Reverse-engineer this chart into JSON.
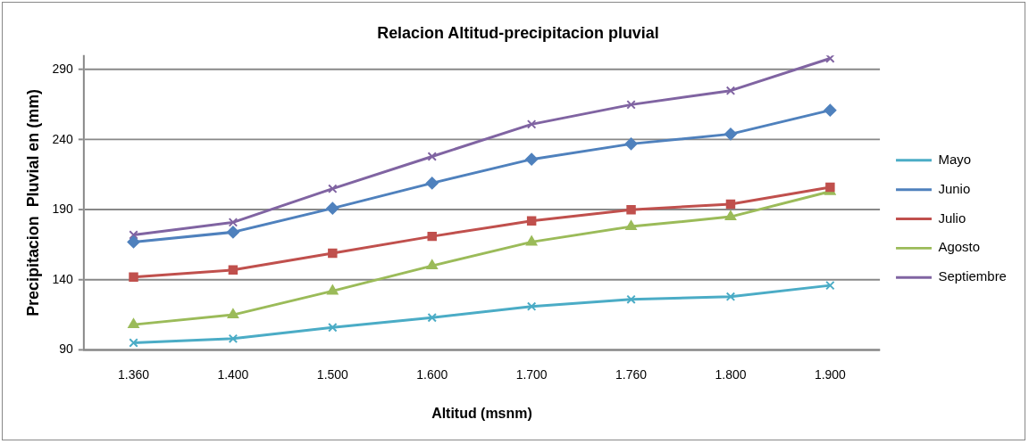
{
  "chart_data": {
    "type": "line",
    "title": "Relacion Altitud-precipitacion pluvial",
    "xlabel": "Altitud (msnm)",
    "ylabel": "Precipitacion  Pluvial en (mm)",
    "categories": [
      "1.360",
      "1.400",
      "1.500",
      "1.600",
      "1.700",
      "1.760",
      "1.800",
      "1.900"
    ],
    "series": [
      {
        "name": "Mayo",
        "color": "#4bacc6",
        "marker": "cross",
        "values": [
          95,
          98,
          106,
          113,
          121,
          126,
          128,
          136
        ]
      },
      {
        "name": "Junio",
        "color": "#4f81bd",
        "marker": "diamond",
        "values": [
          167,
          174,
          191,
          209,
          226,
          237,
          244,
          261
        ]
      },
      {
        "name": "Julio",
        "color": "#c0504d",
        "marker": "square",
        "values": [
          142,
          147,
          159,
          171,
          182,
          190,
          194,
          206
        ]
      },
      {
        "name": "Agosto",
        "color": "#9bbb59",
        "marker": "triangle",
        "values": [
          108,
          115,
          132,
          150,
          167,
          178,
          185,
          203
        ]
      },
      {
        "name": "Septiembre",
        "color": "#8064a2",
        "marker": "cross",
        "values": [
          172,
          181,
          205,
          228,
          251,
          265,
          275,
          298
        ]
      }
    ],
    "ylim": [
      90,
      300
    ],
    "yticks": [
      90,
      140,
      190,
      240,
      290
    ],
    "grid": "y",
    "legend": "right"
  }
}
